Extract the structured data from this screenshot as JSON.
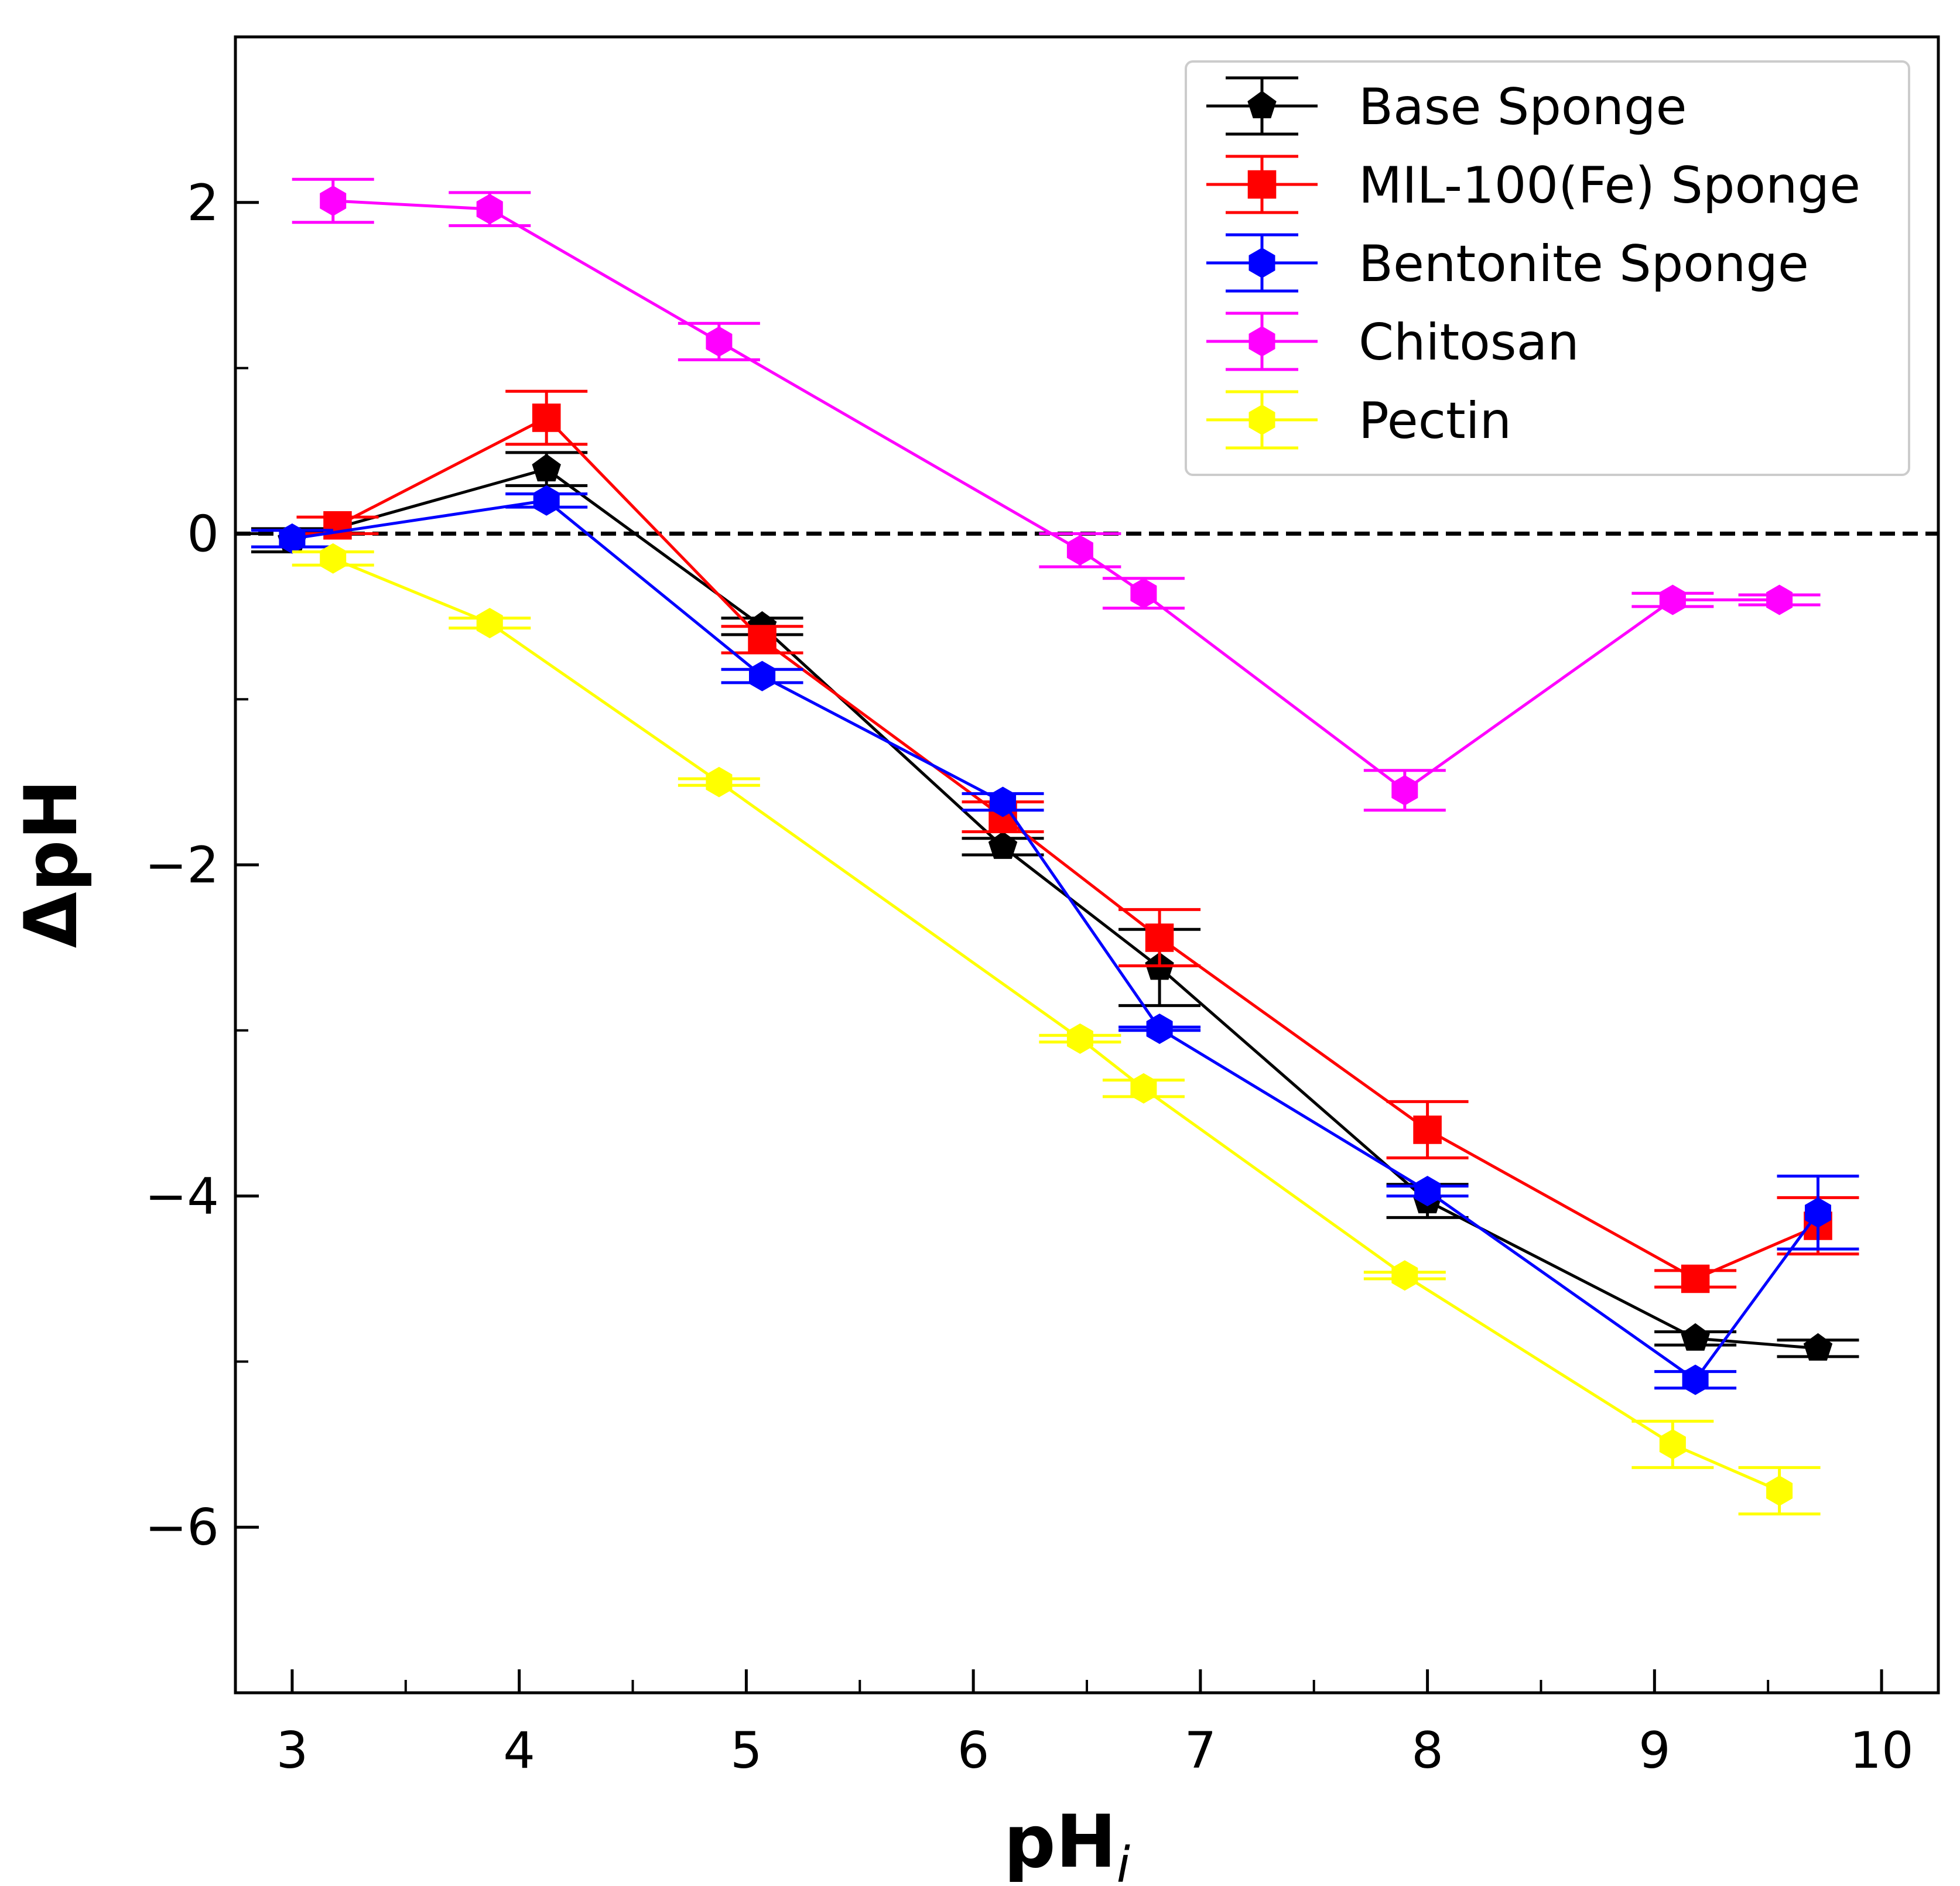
{
  "chart_data": {
    "type": "scatter",
    "xlabel": "pH",
    "xlabel_sub": "i",
    "ylabel": "ΔpH",
    "xlim": [
      2.75,
      10.25
    ],
    "ylim": [
      -7,
      3
    ],
    "xticks": [
      3,
      4,
      5,
      6,
      7,
      8,
      9,
      10
    ],
    "yticks": [
      -6,
      -4,
      -2,
      0,
      2
    ],
    "xtick_labels": [
      "3",
      "4",
      "5",
      "6",
      "7",
      "8",
      "9",
      "10"
    ],
    "ytick_labels": [
      "−6",
      "−4",
      "−2",
      "0",
      "2"
    ],
    "reference_line": {
      "y": 0,
      "style": "dashed",
      "color": "#000000"
    },
    "legend_position": "top-right",
    "series": [
      {
        "name": "Base Sponge",
        "color": "#000000",
        "marker": "pentagon",
        "x": [
          3.0,
          4.12,
          5.07,
          6.13,
          6.82,
          8.0,
          9.18,
          9.72
        ],
        "y": [
          -0.04,
          0.39,
          -0.56,
          -1.89,
          -2.62,
          -4.03,
          -4.86,
          -4.92
        ],
        "err": [
          0.07,
          0.1,
          0.05,
          0.05,
          0.23,
          0.1,
          0.04,
          0.05
        ]
      },
      {
        "name": "MIL-100(Fe) Sponge",
        "color": "#ff0000",
        "marker": "square",
        "x": [
          3.2,
          4.12,
          5.07,
          6.13,
          6.82,
          8.0,
          9.18,
          9.72
        ],
        "y": [
          0.05,
          0.7,
          -0.64,
          -1.71,
          -2.44,
          -3.6,
          -4.5,
          -4.18
        ],
        "err": [
          0.05,
          0.16,
          0.08,
          0.09,
          0.17,
          0.17,
          0.05,
          0.17
        ]
      },
      {
        "name": "Bentonite Sponge",
        "color": "#0000ff",
        "marker": "hexagon",
        "x": [
          3.0,
          4.12,
          5.07,
          6.13,
          6.82,
          8.0,
          9.18,
          9.72
        ],
        "y": [
          -0.03,
          0.2,
          -0.86,
          -1.62,
          -2.99,
          -3.97,
          -5.11,
          -4.1
        ],
        "err": [
          0.05,
          0.04,
          0.04,
          0.05,
          0.01,
          0.03,
          0.05,
          0.22
        ]
      },
      {
        "name": "Chitosan",
        "color": "#ff00ff",
        "marker": "hexagon",
        "x": [
          3.18,
          3.87,
          4.88,
          6.47,
          6.75,
          7.9,
          9.08,
          9.55
        ],
        "y": [
          2.01,
          1.96,
          1.16,
          -0.1,
          -0.36,
          -1.55,
          -0.4,
          -0.4
        ],
        "err": [
          0.13,
          0.1,
          0.11,
          0.1,
          0.09,
          0.12,
          0.04,
          0.03
        ]
      },
      {
        "name": "Pectin",
        "color": "#ffff00",
        "marker": "hexagon",
        "x": [
          3.18,
          3.87,
          4.88,
          6.47,
          6.75,
          7.9,
          9.08,
          9.55
        ],
        "y": [
          -0.15,
          -0.54,
          -1.5,
          -3.05,
          -3.35,
          -4.48,
          -5.5,
          -5.78
        ],
        "err": [
          0.04,
          0.03,
          0.02,
          0.02,
          0.05,
          0.02,
          0.14,
          0.14
        ]
      }
    ]
  }
}
